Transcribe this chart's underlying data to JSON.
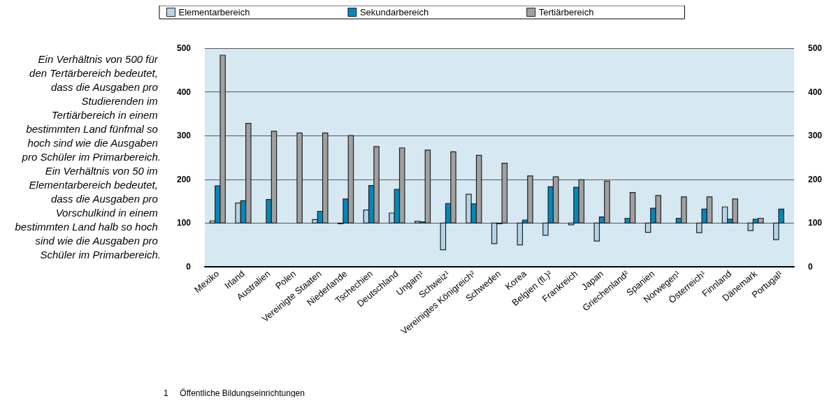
{
  "chart_data": {
    "type": "bar",
    "categories": [
      "Mexiko",
      "Irland",
      "Australien",
      "Polen",
      "Vereinigte Staaten",
      "Niederlande",
      "Tschechien",
      "Deutschland",
      "Ungarn¹",
      "Schweiz¹",
      "Vereinigtes Königreich²",
      "Schweden",
      "Korea",
      "Belgien (fl.)²",
      "Frankreich",
      "Japan",
      "Griechenland²",
      "Spanien",
      "Norwegen¹",
      "Österreich¹",
      "Finnland",
      "Dänemark",
      "Portugal¹"
    ],
    "series": [
      {
        "name": "Elementarbereich",
        "color": "#b3d5e8",
        "base": [
          100,
          100,
          null,
          null,
          100,
          100,
          100,
          100,
          100,
          100,
          100,
          100,
          100,
          100,
          100,
          100,
          null,
          100,
          null,
          100,
          100,
          100,
          100
        ],
        "values": [
          5,
          46,
          null,
          null,
          8,
          -1,
          30,
          23,
          4,
          -61,
          66,
          -47,
          -50,
          -28,
          -4,
          -41,
          null,
          -21,
          null,
          -22,
          37,
          -17,
          -38
        ]
      },
      {
        "name": "Sekundarbereich",
        "color": "#0088bb",
        "base": [
          100,
          100,
          100,
          null,
          100,
          100,
          100,
          100,
          100,
          100,
          100,
          100,
          100,
          100,
          100,
          100,
          100,
          100,
          100,
          100,
          100,
          100,
          100
        ],
        "values": [
          85,
          51,
          54,
          null,
          27,
          55,
          86,
          77,
          3,
          45,
          44,
          0,
          7,
          83,
          82,
          14,
          11,
          34,
          11,
          32,
          9,
          9,
          32
        ]
      },
      {
        "name": "Tertiärbereich",
        "color": "#a0a0a0",
        "base": [
          100,
          100,
          100,
          100,
          100,
          100,
          100,
          100,
          100,
          100,
          100,
          100,
          100,
          100,
          100,
          100,
          100,
          100,
          100,
          100,
          100,
          100,
          null
        ],
        "values": [
          384,
          228,
          210,
          206,
          206,
          200,
          175,
          172,
          167,
          163,
          155,
          137,
          108,
          106,
          99,
          96,
          70,
          63,
          60,
          60,
          55,
          11,
          null
        ]
      }
    ],
    "ylim": [
      0,
      500
    ],
    "yticks": [
      0,
      100,
      200,
      300,
      400,
      500
    ],
    "y2lim": [
      0,
      500
    ],
    "y2ticks": [
      0,
      100,
      200,
      300,
      400,
      500
    ],
    "grid": "y",
    "legend": "top",
    "annotations": [
      "Ein Verhältnis von 500 für den Tertärbereich bedeutet, dass die Ausgaben pro Studierenden im Tertiärbereich in einem bestimmten Land fünfmal so hoch sind wie die Ausgaben pro Schüler im Primarbereich.",
      "Ein Verhältnis von 50 im Elementarbereich bedeutet, dass die Ausgaben pro Vorschulkind in einem bestimmten Land halb so hoch sind wie die Ausgaben pro Schüler im Primarbereich.",
      "1     Öffentliche Bildungseinrichtungen"
    ]
  }
}
